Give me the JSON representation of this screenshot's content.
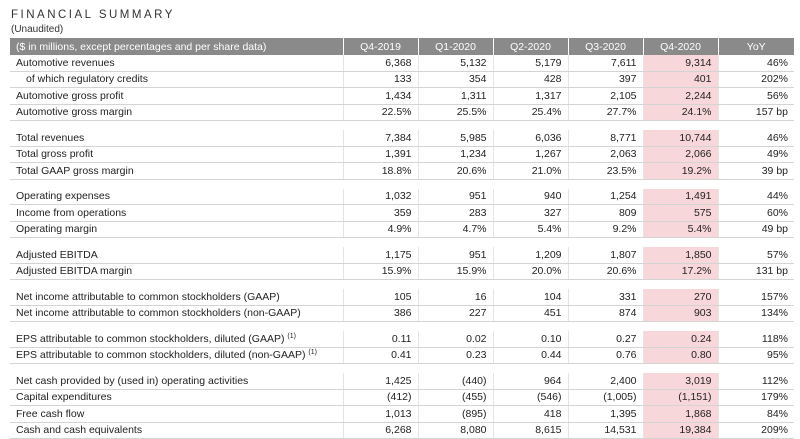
{
  "title": "FINANCIAL SUMMARY",
  "subtitle": "(Unaudited)",
  "header": {
    "label": "($ in millions, except percentages and per share data)",
    "columns": [
      "Q4-2019",
      "Q1-2020",
      "Q2-2020",
      "Q3-2020",
      "Q4-2020",
      "YoY"
    ]
  },
  "colors": {
    "header_bg": "#8a8a8a",
    "highlight": "#f8d7da"
  },
  "groups": [
    {
      "rows": [
        {
          "label": "Automotive revenues",
          "values": [
            "6,368",
            "5,132",
            "5,179",
            "7,611",
            "9,314",
            "46%"
          ]
        },
        {
          "label": "of which regulatory credits",
          "indent": true,
          "values": [
            "133",
            "354",
            "428",
            "397",
            "401",
            "202%"
          ]
        },
        {
          "label": "Automotive gross profit",
          "values": [
            "1,434",
            "1,311",
            "1,317",
            "2,105",
            "2,244",
            "56%"
          ]
        },
        {
          "label": "Automotive gross margin",
          "values": [
            "22.5%",
            "25.5%",
            "25.4%",
            "27.7%",
            "24.1%",
            "157 bp"
          ]
        }
      ]
    },
    {
      "rows": [
        {
          "label": "Total revenues",
          "values": [
            "7,384",
            "5,985",
            "6,036",
            "8,771",
            "10,744",
            "46%"
          ]
        },
        {
          "label": "Total gross profit",
          "values": [
            "1,391",
            "1,234",
            "1,267",
            "2,063",
            "2,066",
            "49%"
          ]
        },
        {
          "label": "Total GAAP gross margin",
          "values": [
            "18.8%",
            "20.6%",
            "21.0%",
            "23.5%",
            "19.2%",
            "39 bp"
          ]
        }
      ]
    },
    {
      "rows": [
        {
          "label": "Operating expenses",
          "values": [
            "1,032",
            "951",
            "940",
            "1,254",
            "1,491",
            "44%"
          ]
        },
        {
          "label": "Income from operations",
          "values": [
            "359",
            "283",
            "327",
            "809",
            "575",
            "60%"
          ]
        },
        {
          "label": "Operating margin",
          "values": [
            "4.9%",
            "4.7%",
            "5.4%",
            "9.2%",
            "5.4%",
            "49 bp"
          ]
        }
      ]
    },
    {
      "rows": [
        {
          "label": "Adjusted EBITDA",
          "values": [
            "1,175",
            "951",
            "1,209",
            "1,807",
            "1,850",
            "57%"
          ]
        },
        {
          "label": "Adjusted EBITDA margin",
          "values": [
            "15.9%",
            "15.9%",
            "20.0%",
            "20.6%",
            "17.2%",
            "131 bp"
          ]
        }
      ]
    },
    {
      "rows": [
        {
          "label": "Net income attributable to common stockholders (GAAP)",
          "values": [
            "105",
            "16",
            "104",
            "331",
            "270",
            "157%"
          ]
        },
        {
          "label": "Net income attributable to common stockholders (non-GAAP)",
          "values": [
            "386",
            "227",
            "451",
            "874",
            "903",
            "134%"
          ]
        }
      ]
    },
    {
      "rows": [
        {
          "label": "EPS attributable to common stockholders, diluted (GAAP)",
          "note": "(1)",
          "values": [
            "0.11",
            "0.02",
            "0.10",
            "0.27",
            "0.24",
            "118%"
          ]
        },
        {
          "label": "EPS attributable to common stockholders, diluted (non-GAAP)",
          "note": "(1)",
          "values": [
            "0.41",
            "0.23",
            "0.44",
            "0.76",
            "0.80",
            "95%"
          ]
        }
      ]
    },
    {
      "rows": [
        {
          "label": "Net cash provided by (used in) operating activities",
          "values": [
            "1,425",
            "(440)",
            "964",
            "2,400",
            "3,019",
            "112%"
          ]
        },
        {
          "label": "Capital expenditures",
          "values": [
            "(412)",
            "(455)",
            "(546)",
            "(1,005)",
            "(1,151)",
            "179%"
          ]
        },
        {
          "label": "Free cash flow",
          "values": [
            "1,013",
            "(895)",
            "418",
            "1,395",
            "1,868",
            "84%"
          ]
        },
        {
          "label": "Cash and cash equivalents",
          "values": [
            "6,268",
            "8,080",
            "8,615",
            "14,531",
            "19,384",
            "209%"
          ]
        }
      ]
    }
  ]
}
